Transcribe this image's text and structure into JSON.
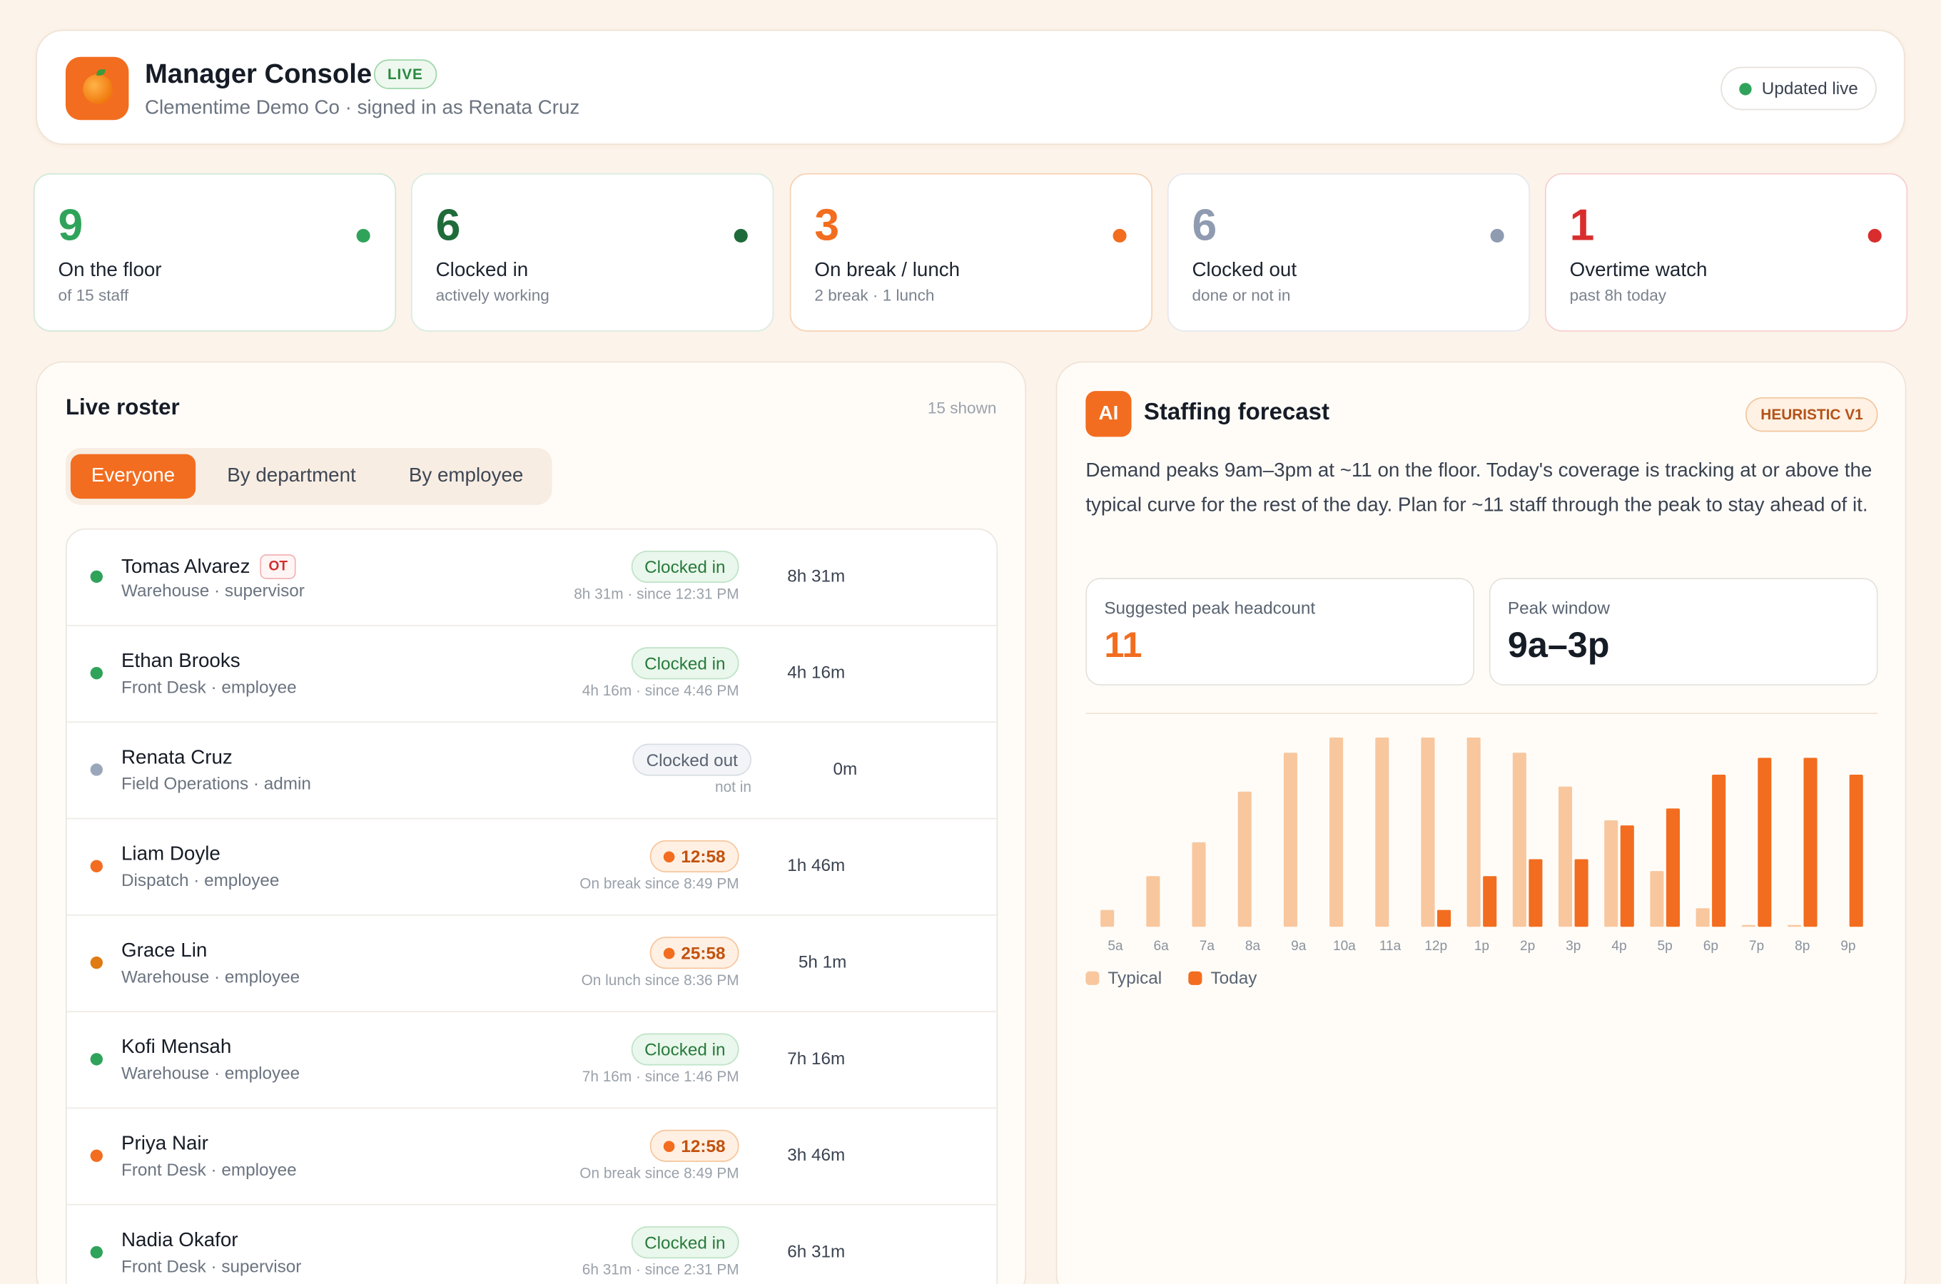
{
  "header": {
    "title": "Manager Console",
    "live_badge": "LIVE",
    "subtitle": "Clementime Demo Co · signed in as Renata Cruz",
    "updated": "Updated live"
  },
  "stats": [
    {
      "value": "9",
      "label": "On the floor",
      "sub": "of 15 staff",
      "color": "#2fa35a"
    },
    {
      "value": "6",
      "label": "Clocked in",
      "sub": "actively working",
      "color": "#1f6b3a"
    },
    {
      "value": "3",
      "label": "On break / lunch",
      "sub": "2 break · 1 lunch",
      "color": "#f26d1f"
    },
    {
      "value": "6",
      "label": "Clocked out",
      "sub": "done or not in",
      "color": "#8f9bb0"
    },
    {
      "value": "1",
      "label": "Overtime watch",
      "sub": "past 8h today",
      "color": "#d92d2d"
    }
  ],
  "roster": {
    "title": "Live roster",
    "shown": "15 shown",
    "tabs": [
      "Everyone",
      "By department",
      "By employee"
    ],
    "rows": [
      {
        "name": "Tomas Alvarez",
        "ot": "OT",
        "meta": "Warehouse · supervisor",
        "status": "Clocked in",
        "since": "8h 31m · since 12:31 PM",
        "dur": "8h 31m"
      },
      {
        "name": "Ethan Brooks",
        "meta": "Front Desk · employee",
        "status": "Clocked in",
        "since": "4h 16m · since 4:46 PM",
        "dur": "4h 16m"
      },
      {
        "name": "Renata Cruz",
        "meta": "Field Operations · admin",
        "status": "Clocked out",
        "since": "not in",
        "dur": "0m"
      },
      {
        "name": "Liam Doyle",
        "meta": "Dispatch · employee",
        "status": "12:58",
        "since": "On break since 8:49 PM",
        "dur": "1h 46m"
      },
      {
        "name": "Grace Lin",
        "meta": "Warehouse · employee",
        "status": "25:58",
        "since": "On lunch since 8:36 PM",
        "dur": "5h 1m"
      },
      {
        "name": "Kofi Mensah",
        "meta": "Warehouse · employee",
        "status": "Clocked in",
        "since": "7h 16m · since 1:46 PM",
        "dur": "7h 16m"
      },
      {
        "name": "Priya Nair",
        "meta": "Front Desk · employee",
        "status": "12:58",
        "since": "On break since 8:49 PM",
        "dur": "3h 46m"
      },
      {
        "name": "Nadia Okafor",
        "meta": "Front Desk · supervisor",
        "status": "Clocked in",
        "since": "6h 31m · since 2:31 PM",
        "dur": "6h 31m"
      }
    ]
  },
  "forecast": {
    "ai_label": "AI",
    "title": "Staffing forecast",
    "badge": "HEURISTIC V1",
    "text": "Demand peaks 9am–3pm at ~11 on the floor. Today's coverage is tracking at or above the typical curve for the rest of the day. Plan for ~11 staff through the peak to stay ahead of it.",
    "metric1_label": "Suggested peak headcount",
    "metric1_value": "11",
    "metric2_label": "Peak window",
    "metric2_value": "9a–3p"
  },
  "chart_data": {
    "type": "bar",
    "categories": [
      "5a",
      "6a",
      "7a",
      "8a",
      "9a",
      "10a",
      "11a",
      "12p",
      "1p",
      "2p",
      "3p",
      "4p",
      "5p",
      "6p",
      "7p",
      "8p",
      "9p"
    ],
    "series": [
      {
        "name": "Typical",
        "values": [
          1,
          3,
          5,
          8,
          10.3,
          11.2,
          11.2,
          11.2,
          11.2,
          10.3,
          8.3,
          6.3,
          3.3,
          1.1,
          0.1,
          0.1,
          0
        ],
        "color": "#f8c79e"
      },
      {
        "name": "Today",
        "values": [
          0,
          0,
          0,
          0,
          0,
          0,
          0,
          1,
          3,
          4,
          4,
          6,
          7,
          9,
          10,
          10,
          9
        ],
        "color": "#f26d1f"
      }
    ],
    "ylim": [
      0,
      11.2
    ],
    "legend": "bottom-left"
  }
}
